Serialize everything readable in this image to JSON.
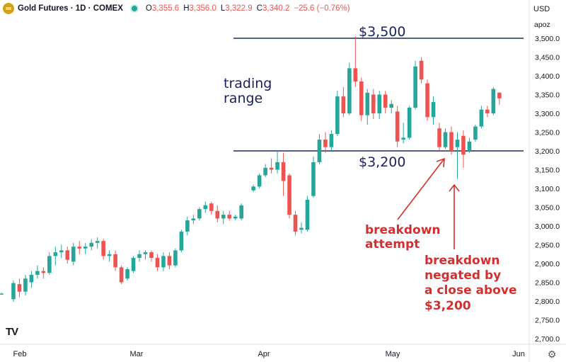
{
  "header": {
    "symbol_title": "Gold Futures · 1D · COMEX",
    "ohlc": [
      {
        "label": "O",
        "value": "3,355.6"
      },
      {
        "label": "H",
        "value": "3,356.0"
      },
      {
        "label": "L",
        "value": "3,322.9"
      },
      {
        "label": "C",
        "value": "3,340.2"
      }
    ],
    "change": "−25.6 (−0.76%)"
  },
  "price_axis": {
    "currency": "USD",
    "scale_mode": "apoz",
    "ticks": [
      "3,500.0",
      "3,450.0",
      "3,400.0",
      "3,350.0",
      "3,300.0",
      "3,250.0",
      "3,200.0",
      "3,150.0",
      "3,100.0",
      "3,050.0",
      "3,000.0",
      "2,950.0",
      "2,900.0",
      "2,850.0",
      "2,800.0",
      "2,750.0",
      "2,700.0"
    ]
  },
  "time_axis": {
    "labels": [
      "Feb",
      "Mar",
      "Apr",
      "May",
      "Jun"
    ]
  },
  "logo_text": "TV",
  "annotations": {
    "resistance_label": "$3,500",
    "support_label": "$3,200",
    "range_label_line1": "trading",
    "range_label_line2": "range",
    "breakdown_attempt_line1": "breakdown",
    "breakdown_attempt_line2": "attempt",
    "negated_line1": "breakdown",
    "negated_line2": "negated by",
    "negated_line3": "a close above",
    "negated_line4": "$3,200"
  },
  "colors": {
    "up": "#26a69a",
    "down": "#ef5350",
    "level_line": "#1a2a5e",
    "annotation_dark": "#17215c",
    "annotation_red": "#d32f2f"
  },
  "chart_data": {
    "type": "candlestick",
    "title": "Gold Futures · 1D · COMEX",
    "y_range": [
      2700,
      3500
    ],
    "levels": [
      {
        "price": 3500,
        "label": "$3,500"
      },
      {
        "price": 3200,
        "label": "$3,200"
      }
    ],
    "candles": [
      {
        "i": 0,
        "o": 2820,
        "h": 2822,
        "l": 2818,
        "c": 2820
      },
      {
        "i": 2,
        "o": 2805,
        "h": 2855,
        "l": 2798,
        "c": 2848
      },
      {
        "i": 3,
        "o": 2845,
        "h": 2860,
        "l": 2810,
        "c": 2825
      },
      {
        "i": 4,
        "o": 2825,
        "h": 2870,
        "l": 2815,
        "c": 2860
      },
      {
        "i": 5,
        "o": 2850,
        "h": 2880,
        "l": 2835,
        "c": 2870
      },
      {
        "i": 6,
        "o": 2870,
        "h": 2895,
        "l": 2860,
        "c": 2880
      },
      {
        "i": 7,
        "o": 2880,
        "h": 2890,
        "l": 2860,
        "c": 2875
      },
      {
        "i": 8,
        "o": 2875,
        "h": 2930,
        "l": 2870,
        "c": 2920
      },
      {
        "i": 9,
        "o": 2920,
        "h": 2945,
        "l": 2895,
        "c": 2930
      },
      {
        "i": 10,
        "o": 2930,
        "h": 2950,
        "l": 2915,
        "c": 2935
      },
      {
        "i": 11,
        "o": 2935,
        "h": 2945,
        "l": 2900,
        "c": 2910
      },
      {
        "i": 12,
        "o": 2905,
        "h": 2955,
        "l": 2895,
        "c": 2945
      },
      {
        "i": 13,
        "o": 2945,
        "h": 2960,
        "l": 2925,
        "c": 2940
      },
      {
        "i": 14,
        "o": 2940,
        "h": 2955,
        "l": 2925,
        "c": 2945
      },
      {
        "i": 15,
        "o": 2945,
        "h": 2965,
        "l": 2935,
        "c": 2955
      },
      {
        "i": 16,
        "o": 2955,
        "h": 2970,
        "l": 2940,
        "c": 2960
      },
      {
        "i": 17,
        "o": 2960,
        "h": 2965,
        "l": 2910,
        "c": 2920
      },
      {
        "i": 18,
        "o": 2920,
        "h": 2935,
        "l": 2905,
        "c": 2925
      },
      {
        "i": 19,
        "o": 2925,
        "h": 2935,
        "l": 2880,
        "c": 2890
      },
      {
        "i": 20,
        "o": 2890,
        "h": 2895,
        "l": 2845,
        "c": 2850
      },
      {
        "i": 21,
        "o": 2860,
        "h": 2890,
        "l": 2855,
        "c": 2885
      },
      {
        "i": 22,
        "o": 2880,
        "h": 2920,
        "l": 2875,
        "c": 2915
      },
      {
        "i": 23,
        "o": 2915,
        "h": 2935,
        "l": 2905,
        "c": 2925
      },
      {
        "i": 24,
        "o": 2925,
        "h": 2935,
        "l": 2910,
        "c": 2930
      },
      {
        "i": 25,
        "o": 2930,
        "h": 2935,
        "l": 2905,
        "c": 2915
      },
      {
        "i": 26,
        "o": 2915,
        "h": 2925,
        "l": 2880,
        "c": 2890
      },
      {
        "i": 27,
        "o": 2890,
        "h": 2930,
        "l": 2880,
        "c": 2920
      },
      {
        "i": 28,
        "o": 2920,
        "h": 2930,
        "l": 2885,
        "c": 2895
      },
      {
        "i": 29,
        "o": 2895,
        "h": 2940,
        "l": 2890,
        "c": 2935
      },
      {
        "i": 30,
        "o": 2935,
        "h": 2990,
        "l": 2930,
        "c": 2985
      },
      {
        "i": 31,
        "o": 2985,
        "h": 3025,
        "l": 2975,
        "c": 3015
      },
      {
        "i": 32,
        "o": 3015,
        "h": 3030,
        "l": 3005,
        "c": 3020
      },
      {
        "i": 33,
        "o": 3020,
        "h": 3050,
        "l": 3015,
        "c": 3045
      },
      {
        "i": 34,
        "o": 3045,
        "h": 3065,
        "l": 3035,
        "c": 3055
      },
      {
        "i": 35,
        "o": 3060,
        "h": 3065,
        "l": 3030,
        "c": 3040
      },
      {
        "i": 36,
        "o": 3040,
        "h": 3055,
        "l": 3010,
        "c": 3020
      },
      {
        "i": 37,
        "o": 3020,
        "h": 3040,
        "l": 3005,
        "c": 3030
      },
      {
        "i": 38,
        "o": 3030,
        "h": 3040,
        "l": 3015,
        "c": 3020
      },
      {
        "i": 39,
        "o": 3020,
        "h": 3030,
        "l": 3015,
        "c": 3025
      },
      {
        "i": 40,
        "o": 3020,
        "h": 3060,
        "l": 3015,
        "c": 3055
      },
      {
        "i": 42,
        "o": 3095,
        "h": 3110,
        "l": 3090,
        "c": 3105
      },
      {
        "i": 43,
        "o": 3105,
        "h": 3140,
        "l": 3100,
        "c": 3135
      },
      {
        "i": 44,
        "o": 3135,
        "h": 3165,
        "l": 3130,
        "c": 3155
      },
      {
        "i": 45,
        "o": 3155,
        "h": 3180,
        "l": 3140,
        "c": 3150
      },
      {
        "i": 46,
        "o": 3150,
        "h": 3200,
        "l": 3140,
        "c": 3170
      },
      {
        "i": 47,
        "o": 3170,
        "h": 3195,
        "l": 3080,
        "c": 3120
      },
      {
        "i": 48,
        "o": 3135,
        "h": 3140,
        "l": 3020,
        "c": 3030
      },
      {
        "i": 49,
        "o": 3030,
        "h": 3040,
        "l": 2975,
        "c": 2985
      },
      {
        "i": 50,
        "o": 2990,
        "h": 3010,
        "l": 2980,
        "c": 2995
      },
      {
        "i": 51,
        "o": 2990,
        "h": 3080,
        "l": 2985,
        "c": 3070
      },
      {
        "i": 52,
        "o": 3080,
        "h": 3185,
        "l": 3075,
        "c": 3170
      },
      {
        "i": 53,
        "o": 3170,
        "h": 3245,
        "l": 3165,
        "c": 3230
      },
      {
        "i": 54,
        "o": 3230,
        "h": 3250,
        "l": 3195,
        "c": 3210
      },
      {
        "i": 55,
        "o": 3210,
        "h": 3255,
        "l": 3200,
        "c": 3245
      },
      {
        "i": 56,
        "o": 3245,
        "h": 3360,
        "l": 3240,
        "c": 3345
      },
      {
        "i": 57,
        "o": 3345,
        "h": 3370,
        "l": 3290,
        "c": 3300
      },
      {
        "i": 58,
        "o": 3300,
        "h": 3435,
        "l": 3295,
        "c": 3420
      },
      {
        "i": 59,
        "o": 3420,
        "h": 3505,
        "l": 3370,
        "c": 3385
      },
      {
        "i": 60,
        "o": 3385,
        "h": 3395,
        "l": 3280,
        "c": 3295
      },
      {
        "i": 61,
        "o": 3295,
        "h": 3365,
        "l": 3270,
        "c": 3355
      },
      {
        "i": 62,
        "o": 3350,
        "h": 3365,
        "l": 3285,
        "c": 3300
      },
      {
        "i": 63,
        "o": 3300,
        "h": 3360,
        "l": 3285,
        "c": 3350
      },
      {
        "i": 64,
        "o": 3350,
        "h": 3360,
        "l": 3300,
        "c": 3315
      },
      {
        "i": 65,
        "o": 3315,
        "h": 3335,
        "l": 3300,
        "c": 3325
      },
      {
        "i": 66,
        "o": 3305,
        "h": 3320,
        "l": 3210,
        "c": 3225
      },
      {
        "i": 67,
        "o": 3230,
        "h": 3275,
        "l": 3220,
        "c": 3235
      },
      {
        "i": 68,
        "o": 3235,
        "h": 3320,
        "l": 3230,
        "c": 3315
      },
      {
        "i": 69,
        "o": 3315,
        "h": 3440,
        "l": 3310,
        "c": 3425
      },
      {
        "i": 70,
        "o": 3440,
        "h": 3450,
        "l": 3380,
        "c": 3390
      },
      {
        "i": 71,
        "o": 3380,
        "h": 3390,
        "l": 3280,
        "c": 3290
      },
      {
        "i": 72,
        "o": 3290,
        "h": 3345,
        "l": 3270,
        "c": 3330
      },
      {
        "i": 73,
        "o": 3260,
        "h": 3275,
        "l": 3200,
        "c": 3210
      },
      {
        "i": 74,
        "o": 3210,
        "h": 3260,
        "l": 3205,
        "c": 3250
      },
      {
        "i": 75,
        "o": 3250,
        "h": 3265,
        "l": 3190,
        "c": 3200
      },
      {
        "i": 76,
        "o": 3210,
        "h": 3250,
        "l": 3125,
        "c": 3230
      },
      {
        "i": 77,
        "o": 3240,
        "h": 3255,
        "l": 3155,
        "c": 3190
      },
      {
        "i": 78,
        "o": 3200,
        "h": 3235,
        "l": 3195,
        "c": 3225
      },
      {
        "i": 79,
        "o": 3230,
        "h": 3270,
        "l": 3225,
        "c": 3265
      },
      {
        "i": 80,
        "o": 3265,
        "h": 3320,
        "l": 3260,
        "c": 3310
      },
      {
        "i": 81,
        "o": 3310,
        "h": 3320,
        "l": 3290,
        "c": 3300
      },
      {
        "i": 82,
        "o": 3300,
        "h": 3370,
        "l": 3295,
        "c": 3365
      },
      {
        "i": 83,
        "o": 3355,
        "h": 3356,
        "l": 3323,
        "c": 3340
      }
    ]
  }
}
